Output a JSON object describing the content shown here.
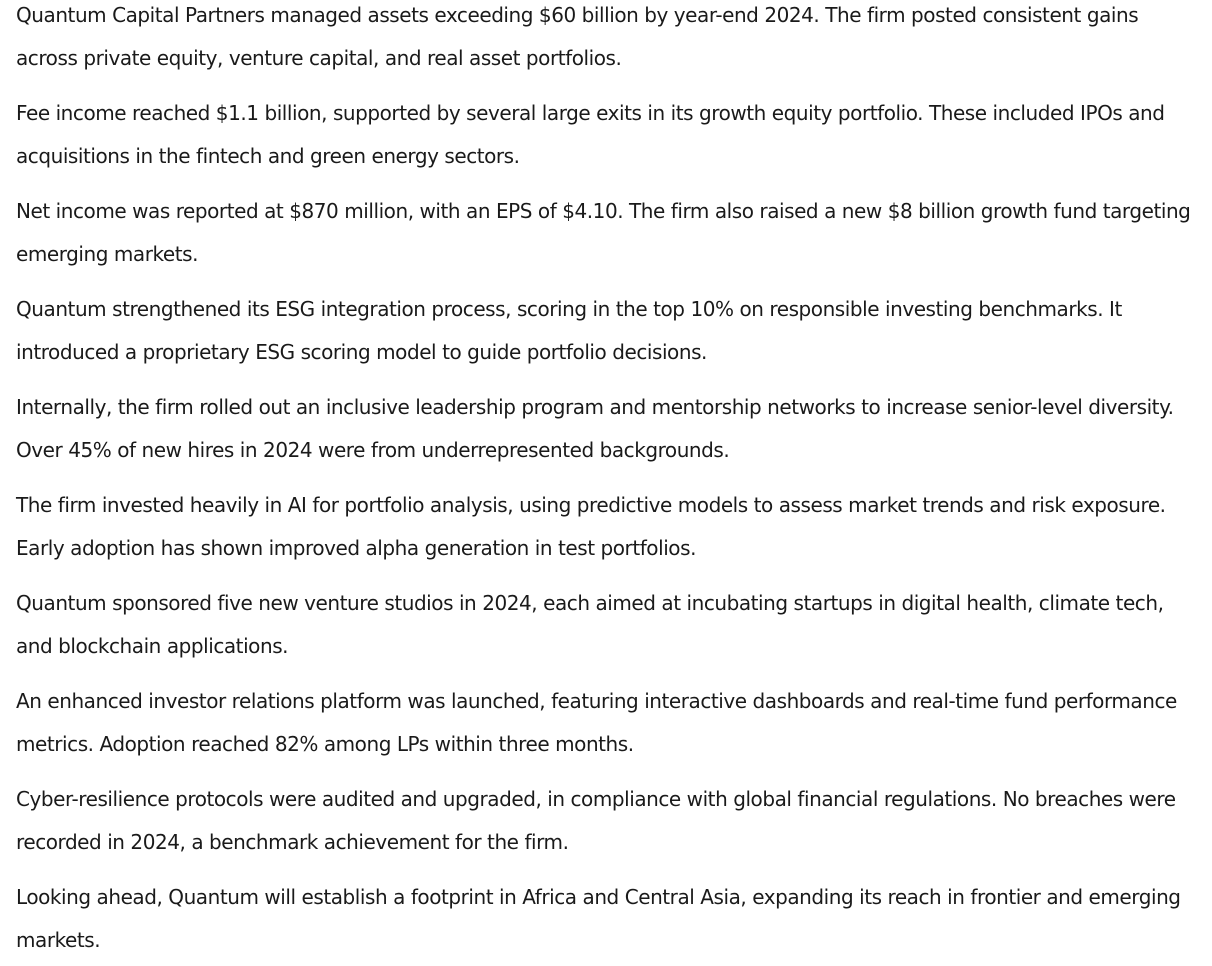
{
  "document": {
    "paragraphs": [
      "Quantum Capital Partners managed assets exceeding $60 billion by year-end 2024. The firm posted consistent gains across private equity, venture capital, and real asset portfolios.",
      "Fee income reached $1.1 billion, supported by several large exits in its growth equity portfolio. These included IPOs and acquisitions in the fintech and green energy sectors.",
      "Net income was reported at $870 million, with an EPS of $4.10. The firm also raised a new $8 billion growth fund targeting emerging markets.",
      "Quantum strengthened its ESG integration process, scoring in the top 10% on responsible investing benchmarks. It introduced a proprietary ESG scoring model to guide portfolio decisions.",
      "Internally, the firm rolled out an inclusive leadership program and mentorship networks to increase senior-level diversity. Over 45% of new hires in 2024 were from underrepresented backgrounds.",
      "The firm invested heavily in AI for portfolio analysis, using predictive models to assess market trends and risk exposure. Early adoption has shown improved alpha generation in test portfolios.",
      "Quantum sponsored five new venture studios in 2024, each aimed at incubating startups in digital health, climate tech, and blockchain applications.",
      "An enhanced investor relations platform was launched, featuring interactive dashboards and real-time fund performance metrics. Adoption reached 82% among LPs within three months.",
      "Cyber-resilience protocols were audited and upgraded, in compliance with global financial regulations. No breaches were recorded in 2024, a benchmark achievement for the firm.",
      "Looking ahead, Quantum will establish a footprint in Africa and Central Asia, expanding its reach in frontier and emerging markets."
    ]
  }
}
